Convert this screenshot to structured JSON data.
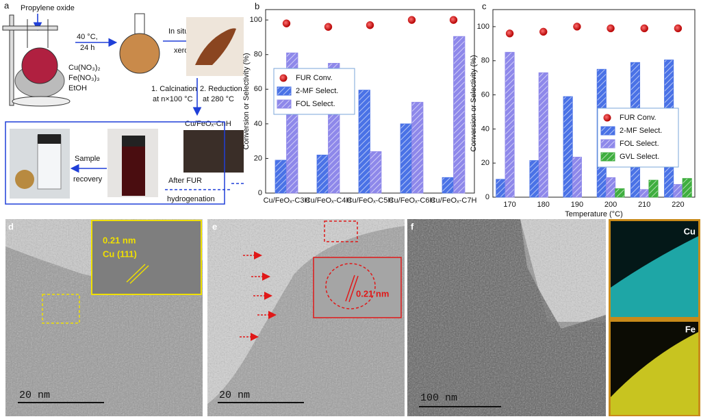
{
  "panel_a": {
    "label": "a",
    "reagent": "Propylene oxide",
    "condition": [
      "40 °C,",
      "24 h"
    ],
    "precursors": [
      "Cu(NO₃)₂",
      "Fe(NO₃)₃",
      "EtOH"
    ],
    "step_dry": [
      "In situ dry",
      "xerogel"
    ],
    "step_calcination": [
      "1. Calcination",
      "at n×100 °C"
    ],
    "step_reduction": [
      "2. Reduction",
      "at 280 °C"
    ],
    "product": "Cu/FeOₓ-CnH",
    "step_recovery": [
      "Sample",
      "recovery"
    ],
    "step_reaction": [
      "After FUR",
      "hydrogenation"
    ]
  },
  "chart_data": [
    {
      "type": "bar",
      "label": "b",
      "ylabel": "Conversion or Selectivity (%)",
      "categories": [
        "Cu/FeOₓ-C3H",
        "Cu/FeOₓ-C4H",
        "Cu/FeOₓ-C5H",
        "Cu/FeOₓ-C6H",
        "Cu/FeOₓ-C7H"
      ],
      "ylim": [
        0,
        106
      ],
      "yticks": [
        0,
        20,
        40,
        60,
        80,
        100
      ],
      "legend": "upper left",
      "series": [
        {
          "name": "FUR Conv.",
          "kind": "scatter",
          "color": "#d41515",
          "values": [
            98,
            96,
            97,
            100,
            100
          ]
        },
        {
          "name": "2-MF Select.",
          "kind": "bar",
          "color": "#4a72e6",
          "values": [
            19,
            22,
            59.5,
            40,
            9
          ]
        },
        {
          "name": "FOL Select.",
          "kind": "bar",
          "color": "#8e88ea",
          "values": [
            81,
            75,
            24,
            52.5,
            90.5
          ]
        }
      ]
    },
    {
      "type": "bar",
      "label": "c",
      "ylabel": "Conversion or Selectivity (%)",
      "xlabel": "Temperature (°C)",
      "categories": [
        170,
        180,
        190,
        200,
        210,
        220
      ],
      "ylim": [
        0,
        110
      ],
      "yticks": [
        0,
        20,
        40,
        60,
        80,
        100
      ],
      "legend": "center right",
      "series": [
        {
          "name": "FUR Conv.",
          "kind": "scatter",
          "color": "#d41515",
          "values": [
            96,
            97,
            100,
            99,
            99,
            99
          ]
        },
        {
          "name": "2-MF Select.",
          "kind": "bar",
          "color": "#4a72e6",
          "values": [
            10.5,
            21.5,
            59,
            75,
            79,
            80.5
          ]
        },
        {
          "name": "FOL Select.",
          "kind": "bar",
          "color": "#8e88ea",
          "values": [
            85,
            73,
            23.5,
            11.5,
            4.5,
            7.5
          ]
        },
        {
          "name": "GVL Select.",
          "kind": "bar",
          "color": "#3fae3f",
          "values": [
            null,
            null,
            null,
            5,
            10,
            11
          ]
        }
      ]
    }
  ],
  "panel_d": {
    "label": "d",
    "spacing": "0.21 nm",
    "plane": "Cu (111)",
    "scale": "20 nm"
  },
  "panel_e": {
    "label": "e",
    "spacing": "0.21 nm",
    "scale": "20 nm"
  },
  "panel_f": {
    "label": "f",
    "scale": "100 nm",
    "maps": [
      "Cu",
      "Fe"
    ]
  }
}
